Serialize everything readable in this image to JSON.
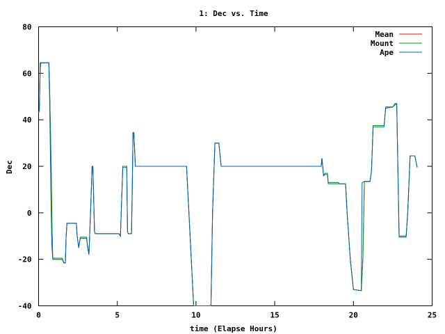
{
  "chart_data": {
    "type": "line",
    "title": "1: Dec vs. Time",
    "xlabel": "time (Elapse Hours)",
    "ylabel": "Dec",
    "xlim": [
      0,
      25
    ],
    "ylim": [
      -40,
      80
    ],
    "x_ticks": [
      0,
      5,
      10,
      15,
      20,
      25
    ],
    "y_ticks": [
      -40,
      -20,
      0,
      20,
      40,
      60,
      80
    ],
    "grid": false,
    "legend_position": "top-right",
    "series": [
      {
        "name": "Mean",
        "color": "#ff0000",
        "points": [
          [
            0,
            43
          ],
          [
            0.05,
            44
          ],
          [
            0.1,
            62
          ],
          [
            0.15,
            64.5
          ],
          [
            0.65,
            64.5
          ],
          [
            0.7,
            55
          ],
          [
            0.8,
            20
          ],
          [
            0.85,
            -5
          ],
          [
            0.9,
            -20
          ],
          [
            1.5,
            -20
          ],
          [
            1.6,
            -21.5
          ],
          [
            1.7,
            -21.5
          ],
          [
            1.75,
            -10
          ],
          [
            1.8,
            -4.5
          ],
          [
            2.4,
            -4.5
          ],
          [
            2.45,
            -10
          ],
          [
            2.55,
            -15
          ],
          [
            2.65,
            -10.5
          ],
          [
            3.05,
            -10.5
          ],
          [
            3.1,
            -14
          ],
          [
            3.2,
            -18
          ],
          [
            3.3,
            0
          ],
          [
            3.4,
            20
          ],
          [
            3.45,
            20
          ],
          [
            3.55,
            -8
          ],
          [
            3.6,
            -9
          ],
          [
            5.1,
            -9
          ],
          [
            5.2,
            -10
          ],
          [
            5.3,
            10
          ],
          [
            5.35,
            20
          ],
          [
            5.6,
            20
          ],
          [
            5.65,
            -8
          ],
          [
            5.7,
            -9
          ],
          [
            5.9,
            -9
          ],
          [
            5.95,
            10
          ],
          [
            6.0,
            34.5
          ],
          [
            6.05,
            34.5
          ],
          [
            6.15,
            20
          ],
          [
            9.4,
            20
          ],
          [
            9.55,
            0
          ],
          [
            9.7,
            -20
          ],
          [
            9.85,
            -40
          ],
          [
            10.95,
            -40
          ],
          [
            11.05,
            0
          ],
          [
            11.2,
            30
          ],
          [
            11.45,
            30
          ],
          [
            11.6,
            20
          ],
          [
            17.95,
            20
          ],
          [
            18.0,
            23.5
          ],
          [
            18.1,
            16
          ],
          [
            18.2,
            17
          ],
          [
            18.35,
            17
          ],
          [
            18.4,
            13
          ],
          [
            19.05,
            13
          ],
          [
            19.1,
            12.5
          ],
          [
            19.5,
            12.5
          ],
          [
            19.6,
            0
          ],
          [
            19.8,
            -20
          ],
          [
            20.0,
            -33
          ],
          [
            20.5,
            -33.5
          ],
          [
            20.6,
            -20
          ],
          [
            20.7,
            13.5
          ],
          [
            21.05,
            13.5
          ],
          [
            21.15,
            18
          ],
          [
            21.25,
            37.5
          ],
          [
            21.95,
            37.5
          ],
          [
            22.05,
            45
          ],
          [
            22.5,
            45.5
          ],
          [
            22.65,
            47
          ],
          [
            22.75,
            47
          ],
          [
            22.9,
            -10
          ],
          [
            23.35,
            -10
          ],
          [
            23.45,
            0
          ],
          [
            23.6,
            24.5
          ],
          [
            23.9,
            24.5
          ],
          [
            24.05,
            19.5
          ]
        ]
      },
      {
        "name": "Mount",
        "color": "#00a000",
        "points": [
          [
            0,
            43
          ],
          [
            0.05,
            44
          ],
          [
            0.1,
            62
          ],
          [
            0.15,
            64.5
          ],
          [
            0.65,
            64.5
          ],
          [
            0.7,
            55
          ],
          [
            0.8,
            20
          ],
          [
            0.85,
            -5
          ],
          [
            0.9,
            -20
          ],
          [
            1.5,
            -20
          ],
          [
            1.6,
            -21.5
          ],
          [
            1.7,
            -21.5
          ],
          [
            1.75,
            -10
          ],
          [
            1.8,
            -4.5
          ],
          [
            2.4,
            -4.5
          ],
          [
            2.45,
            -10
          ],
          [
            2.55,
            -15
          ],
          [
            2.65,
            -10.5
          ],
          [
            3.05,
            -10.5
          ],
          [
            3.1,
            -14
          ],
          [
            3.2,
            -18
          ],
          [
            3.3,
            0
          ],
          [
            3.4,
            20
          ],
          [
            3.45,
            20
          ],
          [
            3.55,
            -8
          ],
          [
            3.6,
            -9
          ],
          [
            5.1,
            -9
          ],
          [
            5.2,
            -10
          ],
          [
            5.3,
            10
          ],
          [
            5.35,
            20
          ],
          [
            5.6,
            20
          ],
          [
            5.65,
            -8
          ],
          [
            5.7,
            -9
          ],
          [
            5.9,
            -9
          ],
          [
            5.95,
            10
          ],
          [
            6.0,
            34.5
          ],
          [
            6.05,
            34.5
          ],
          [
            6.15,
            20
          ],
          [
            9.4,
            20
          ],
          [
            9.55,
            0
          ],
          [
            9.7,
            -20
          ],
          [
            9.85,
            -40
          ],
          [
            10.95,
            -40
          ],
          [
            11.05,
            0
          ],
          [
            11.2,
            30
          ],
          [
            11.45,
            30
          ],
          [
            11.6,
            20
          ],
          [
            17.95,
            20
          ],
          [
            18.0,
            23.5
          ],
          [
            18.1,
            16
          ],
          [
            18.2,
            17
          ],
          [
            18.35,
            17
          ],
          [
            18.4,
            13
          ],
          [
            19.05,
            13
          ],
          [
            19.1,
            12.5
          ],
          [
            19.5,
            12.5
          ],
          [
            19.6,
            0
          ],
          [
            19.8,
            -20
          ],
          [
            20.0,
            -33
          ],
          [
            20.5,
            -33.5
          ],
          [
            20.6,
            -20
          ],
          [
            20.7,
            13.5
          ],
          [
            21.05,
            13.5
          ],
          [
            21.15,
            18
          ],
          [
            21.25,
            37.5
          ],
          [
            21.95,
            37.5
          ],
          [
            22.05,
            45
          ],
          [
            22.5,
            45.5
          ],
          [
            22.65,
            47
          ],
          [
            22.75,
            47
          ],
          [
            22.9,
            -10
          ],
          [
            23.35,
            -10
          ],
          [
            23.45,
            0
          ],
          [
            23.6,
            24.5
          ],
          [
            23.9,
            24.5
          ],
          [
            24.05,
            19.5
          ]
        ]
      },
      {
        "name": "Ape",
        "color": "#0060c0",
        "points": [
          [
            0,
            43
          ],
          [
            0.05,
            44
          ],
          [
            0.1,
            64.5
          ],
          [
            0.65,
            64.5
          ],
          [
            0.7,
            50
          ],
          [
            0.8,
            0
          ],
          [
            0.85,
            -15
          ],
          [
            0.9,
            -19.5
          ],
          [
            1.5,
            -19.5
          ],
          [
            1.6,
            -21.5
          ],
          [
            1.7,
            -21.5
          ],
          [
            1.75,
            -10
          ],
          [
            1.8,
            -4.5
          ],
          [
            2.4,
            -4.5
          ],
          [
            2.45,
            -10
          ],
          [
            2.55,
            -15
          ],
          [
            2.65,
            -11
          ],
          [
            3.05,
            -11
          ],
          [
            3.1,
            -14
          ],
          [
            3.2,
            -18
          ],
          [
            3.3,
            0
          ],
          [
            3.4,
            20
          ],
          [
            3.45,
            20
          ],
          [
            3.55,
            -8
          ],
          [
            3.6,
            -9
          ],
          [
            5.1,
            -9
          ],
          [
            5.2,
            -10
          ],
          [
            5.3,
            10
          ],
          [
            5.35,
            19.5
          ],
          [
            5.6,
            19.5
          ],
          [
            5.65,
            -8
          ],
          [
            5.7,
            -9
          ],
          [
            5.9,
            -9
          ],
          [
            5.95,
            10
          ],
          [
            6.0,
            34.5
          ],
          [
            6.05,
            34.5
          ],
          [
            6.15,
            20
          ],
          [
            9.4,
            20
          ],
          [
            9.55,
            0
          ],
          [
            9.7,
            -20
          ],
          [
            9.85,
            -40
          ],
          [
            10.95,
            -40
          ],
          [
            11.05,
            0
          ],
          [
            11.2,
            30
          ],
          [
            11.45,
            30
          ],
          [
            11.6,
            20
          ],
          [
            17.95,
            20
          ],
          [
            18.0,
            23.5
          ],
          [
            18.1,
            16
          ],
          [
            18.2,
            16.5
          ],
          [
            18.35,
            16.5
          ],
          [
            18.4,
            12.5
          ],
          [
            19.05,
            12.5
          ],
          [
            19.1,
            12.5
          ],
          [
            19.5,
            12.5
          ],
          [
            19.6,
            0
          ],
          [
            19.8,
            -20
          ],
          [
            20.0,
            -33
          ],
          [
            20.5,
            -33.5
          ],
          [
            20.55,
            13
          ],
          [
            20.7,
            13.5
          ],
          [
            21.05,
            13.5
          ],
          [
            21.15,
            18
          ],
          [
            21.25,
            37
          ],
          [
            21.95,
            37
          ],
          [
            22.05,
            45.5
          ],
          [
            22.5,
            45.5
          ],
          [
            22.65,
            46.5
          ],
          [
            22.75,
            46.5
          ],
          [
            22.9,
            -10.5
          ],
          [
            23.35,
            -10.5
          ],
          [
            23.45,
            0
          ],
          [
            23.6,
            24.5
          ],
          [
            23.9,
            24.5
          ],
          [
            24.05,
            19.5
          ]
        ]
      }
    ]
  }
}
